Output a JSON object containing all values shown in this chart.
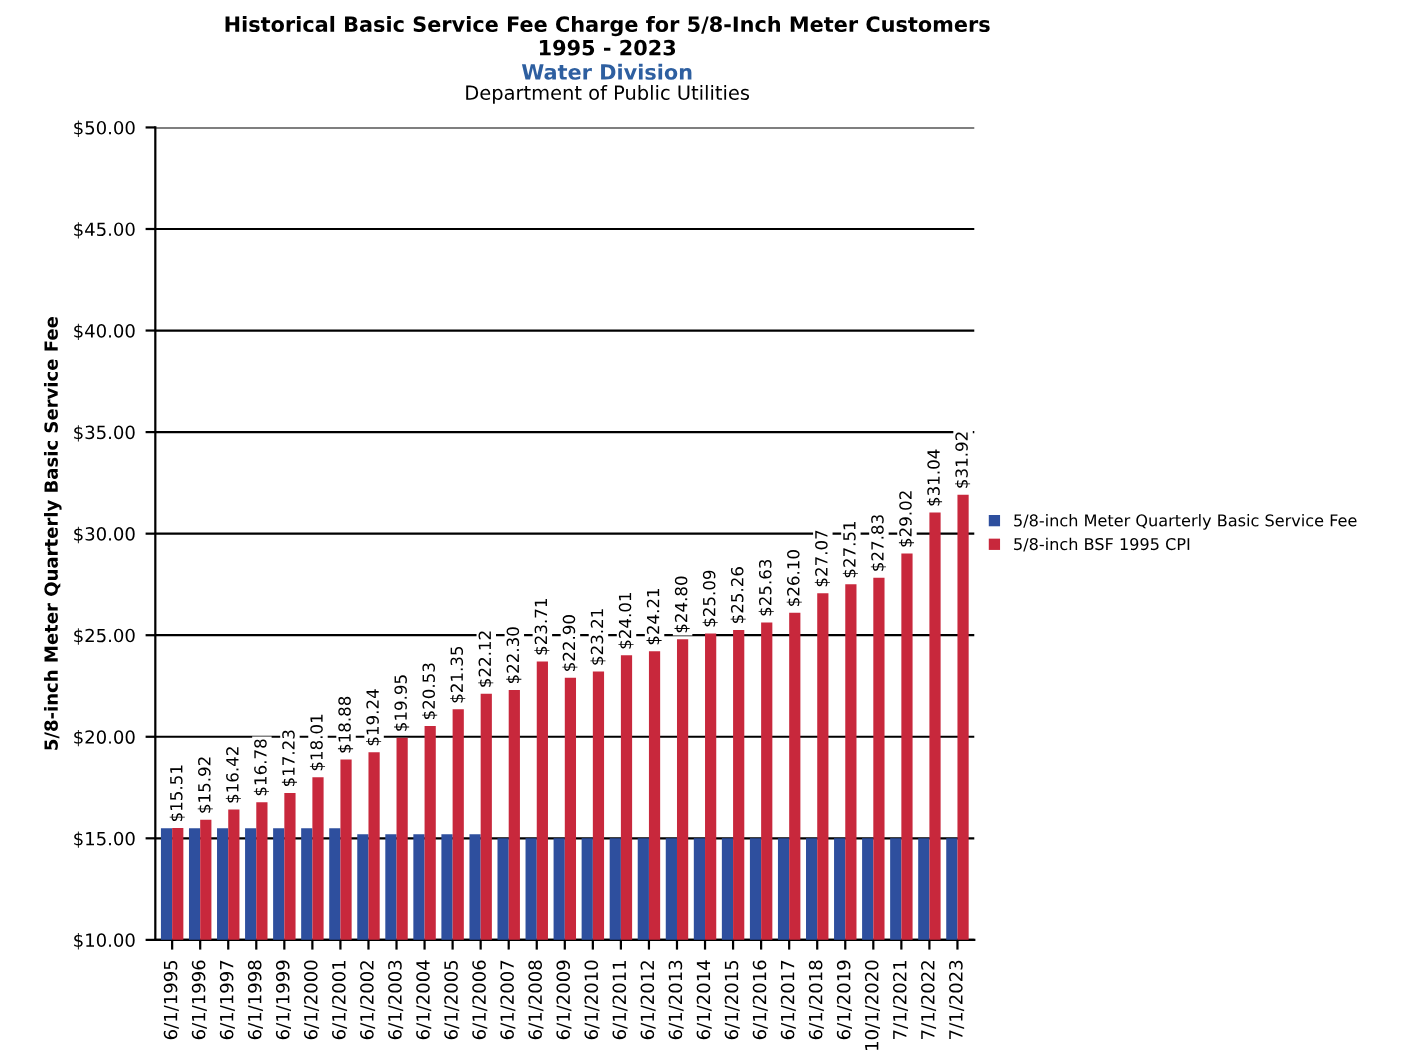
{
  "chart_data": {
    "type": "bar",
    "title": "Historical Basic Service Fee Charge for 5/8-Inch Meter Customers\n1995 - 2023",
    "subtitle": "Water Division",
    "annotations": [
      "Department of Public Utilities"
    ],
    "ylabel": "5/8-inch Meter Quarterly Basic Service Fee",
    "categories": [
      "6/1/1995",
      "6/1/1996",
      "6/1/1997",
      "6/1/1998",
      "6/1/1999",
      "6/1/2000",
      "6/1/2001",
      "6/1/2002",
      "6/1/2003",
      "6/1/2004",
      "6/1/2005",
      "6/1/2006",
      "6/1/2007",
      "6/1/2008",
      "6/1/2009",
      "6/1/2010",
      "6/1/2011",
      "6/1/2012",
      "6/1/2013",
      "6/1/2014",
      "6/1/2015",
      "6/1/2016",
      "6/1/2017",
      "6/1/2018",
      "6/1/2019",
      "10/1/2020",
      "7/1/2021",
      "7/1/2022",
      "7/1/2023"
    ],
    "series": [
      {
        "name": "5/8-inch Meter Quarterly Basic Service Fee",
        "color": "#2e4f9e",
        "values": [
          15.5,
          15.5,
          15.5,
          15.5,
          15.5,
          15.5,
          15.5,
          15.2,
          15.2,
          15.2,
          15.2,
          15.2,
          15.0,
          15.0,
          15.0,
          15.0,
          15.0,
          15.0,
          15.0,
          15.0,
          15.0,
          15.0,
          15.0,
          15.0,
          15.0,
          15.0,
          15.0,
          15.0,
          15.0
        ]
      },
      {
        "name": "5/8-inch BSF 1995 CPI",
        "color": "#c8283c",
        "values": [
          15.51,
          15.92,
          16.42,
          16.78,
          17.23,
          18.01,
          18.88,
          19.24,
          19.95,
          20.53,
          21.35,
          22.12,
          22.3,
          23.71,
          22.9,
          23.21,
          24.01,
          24.21,
          24.8,
          25.09,
          25.26,
          25.63,
          26.1,
          27.07,
          27.51,
          27.83,
          29.02,
          31.04,
          31.92
        ],
        "value_labels": [
          "$15.51",
          "$15.92",
          "$16.42",
          "$16.78",
          "$17.23",
          "$18.01",
          "$18.88",
          "$19.24",
          "$19.95",
          "$20.53",
          "$21.35",
          "$22.12",
          "$22.30",
          "$23.71",
          "$22.90",
          "$23.21",
          "$24.01",
          "$24.21",
          "$24.80",
          "$25.09",
          "$25.26",
          "$25.63",
          "$26.10",
          "$27.07",
          "$27.51",
          "$27.83",
          "$29.02",
          "$31.04",
          "$31.92"
        ]
      }
    ],
    "ylim": [
      10,
      50
    ],
    "yticks": [
      {
        "value": 10,
        "label": "$10.00"
      },
      {
        "value": 15,
        "label": "$15.00"
      },
      {
        "value": 20,
        "label": "$20.00"
      },
      {
        "value": 25,
        "label": "$25.00"
      },
      {
        "value": 30,
        "label": "$30.00"
      },
      {
        "value": 35,
        "label": "$35.00"
      },
      {
        "value": 40,
        "label": "$40.00"
      },
      {
        "value": 45,
        "label": "$45.00"
      },
      {
        "value": 50,
        "label": "$50.00"
      }
    ],
    "grid": "y",
    "legend": "right"
  }
}
